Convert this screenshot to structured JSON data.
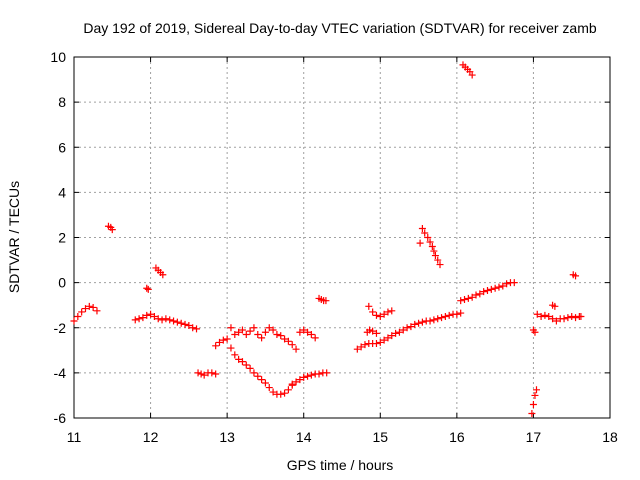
{
  "chart_data": {
    "type": "scatter",
    "title": "Day 192 of 2019, Sidereal Day-to-day VTEC variation (SDTVAR) for receiver zamb",
    "xlabel": "GPS time / hours",
    "ylabel": "SDTVAR / TECUs",
    "xlim": [
      11,
      18
    ],
    "ylim": [
      -6,
      10
    ],
    "xticks": [
      11,
      12,
      13,
      14,
      15,
      16,
      17,
      18
    ],
    "yticks": [
      -6,
      -4,
      -2,
      0,
      2,
      4,
      6,
      8,
      10
    ],
    "grid": true,
    "marker": "+",
    "color": "#ff0000",
    "segments": [
      {
        "x": [
          11.0,
          11.05,
          11.1,
          11.15,
          11.2,
          11.25,
          11.3
        ],
        "y": [
          -1.7,
          -1.5,
          -1.3,
          -1.15,
          -1.05,
          -1.1,
          -1.25
        ]
      },
      {
        "x": [
          11.45,
          11.48,
          11.5
        ],
        "y": [
          2.5,
          2.45,
          2.35
        ]
      },
      {
        "x": [
          11.8,
          11.85,
          11.9,
          11.95,
          12.0,
          12.05,
          12.1,
          12.15,
          12.2,
          12.25,
          12.3,
          12.35,
          12.4,
          12.45,
          12.5,
          12.55,
          12.6
        ],
        "y": [
          -1.65,
          -1.6,
          -1.55,
          -1.45,
          -1.4,
          -1.5,
          -1.6,
          -1.65,
          -1.6,
          -1.65,
          -1.7,
          -1.75,
          -1.8,
          -1.85,
          -1.9,
          -2.0,
          -2.05
        ]
      },
      {
        "x": [
          11.95,
          11.97
        ],
        "y": [
          -0.25,
          -0.3
        ]
      },
      {
        "x": [
          12.07,
          12.1,
          12.13,
          12.16
        ],
        "y": [
          0.65,
          0.55,
          0.45,
          0.35
        ]
      },
      {
        "x": [
          12.62,
          12.66,
          12.7,
          12.75,
          12.8,
          12.85
        ],
        "y": [
          -4.0,
          -4.05,
          -4.1,
          -4.0,
          -4.0,
          -4.05
        ]
      },
      {
        "x": [
          12.85,
          12.9,
          12.95,
          13.0,
          13.05,
          13.1,
          13.15,
          13.2,
          13.25,
          13.3,
          13.35,
          13.4,
          13.45,
          13.5,
          13.55,
          13.6,
          13.65,
          13.7,
          13.75,
          13.8,
          13.85
        ],
        "y": [
          -2.8,
          -2.65,
          -2.55,
          -2.5,
          -2.9,
          -3.2,
          -3.4,
          -3.5,
          -3.65,
          -3.8,
          -4.0,
          -4.15,
          -4.3,
          -4.45,
          -4.65,
          -4.85,
          -4.95,
          -4.95,
          -4.9,
          -4.75,
          -4.55
        ]
      },
      {
        "x": [
          13.05,
          13.1,
          13.15,
          13.2,
          13.25,
          13.3,
          13.35,
          13.4,
          13.45,
          13.5,
          13.55,
          13.6,
          13.65,
          13.7,
          13.75,
          13.8,
          13.85,
          13.9
        ],
        "y": [
          -2.0,
          -2.3,
          -2.2,
          -2.1,
          -2.3,
          -2.15,
          -2.0,
          -2.3,
          -2.45,
          -2.2,
          -2.0,
          -2.1,
          -2.3,
          -2.35,
          -2.5,
          -2.6,
          -2.75,
          -2.95
        ]
      },
      {
        "x": [
          13.85,
          13.9,
          13.95,
          14.0,
          14.05,
          14.1,
          14.15,
          14.2,
          14.25,
          14.3
        ],
        "y": [
          -4.5,
          -4.4,
          -4.3,
          -4.2,
          -4.15,
          -4.1,
          -4.05,
          -4.05,
          -4.0,
          -4.0
        ]
      },
      {
        "x": [
          13.95,
          14.0,
          14.05,
          14.1,
          14.15
        ],
        "y": [
          -2.2,
          -2.1,
          -2.2,
          -2.3,
          -2.45
        ]
      },
      {
        "x": [
          14.2,
          14.23,
          14.26,
          14.29
        ],
        "y": [
          -0.7,
          -0.75,
          -0.8,
          -0.8
        ]
      },
      {
        "x": [
          14.7,
          14.75,
          14.8,
          14.85,
          14.9,
          14.95,
          15.0,
          15.05,
          15.1,
          15.15,
          15.2,
          15.25,
          15.3,
          15.35,
          15.4,
          15.45,
          15.5,
          15.55,
          15.6,
          15.65,
          15.7,
          15.75,
          15.8,
          15.85,
          15.9,
          15.95,
          16.0,
          16.05
        ],
        "y": [
          -2.95,
          -2.85,
          -2.75,
          -2.7,
          -2.7,
          -2.7,
          -2.65,
          -2.55,
          -2.45,
          -2.35,
          -2.25,
          -2.2,
          -2.1,
          -2.0,
          -1.95,
          -1.85,
          -1.8,
          -1.75,
          -1.7,
          -1.7,
          -1.65,
          -1.6,
          -1.55,
          -1.5,
          -1.45,
          -1.4,
          -1.4,
          -1.35
        ]
      },
      {
        "x": [
          14.83,
          14.86,
          14.9,
          14.95
        ],
        "y": [
          -2.2,
          -2.1,
          -2.15,
          -2.25
        ]
      },
      {
        "x": [
          14.85,
          14.9,
          14.95,
          15.0,
          15.05,
          15.1,
          15.15
        ],
        "y": [
          -1.05,
          -1.3,
          -1.45,
          -1.5,
          -1.4,
          -1.3,
          -1.25
        ]
      },
      {
        "x": [
          15.52,
          15.55,
          15.58,
          15.62,
          15.65,
          15.68,
          15.7,
          15.72,
          15.75,
          15.78
        ],
        "y": [
          1.75,
          2.4,
          2.2,
          2.0,
          1.8,
          1.6,
          1.4,
          1.2,
          1.0,
          0.8
        ]
      },
      {
        "x": [
          16.05,
          16.1,
          16.15,
          16.2,
          16.25,
          16.3,
          16.35,
          16.4,
          16.45,
          16.5,
          16.55,
          16.6,
          16.65,
          16.7,
          16.75
        ],
        "y": [
          -0.8,
          -0.75,
          -0.7,
          -0.65,
          -0.55,
          -0.5,
          -0.4,
          -0.35,
          -0.3,
          -0.25,
          -0.2,
          -0.15,
          -0.05,
          0.0,
          0.0
        ]
      },
      {
        "x": [
          16.08,
          16.11,
          16.14,
          16.17,
          16.2
        ],
        "y": [
          9.65,
          9.55,
          9.45,
          9.35,
          9.2
        ]
      },
      {
        "x": [
          16.98,
          17.0,
          17.02,
          17.04
        ],
        "y": [
          -5.8,
          -5.4,
          -5.0,
          -4.75
        ]
      },
      {
        "x": [
          17.0,
          17.02
        ],
        "y": [
          -2.1,
          -2.2
        ]
      },
      {
        "x": [
          17.05,
          17.1,
          17.15,
          17.2,
          17.25,
          17.3,
          17.35,
          17.4,
          17.45,
          17.5,
          17.55,
          17.6,
          17.62
        ],
        "y": [
          -1.4,
          -1.5,
          -1.45,
          -1.5,
          -1.6,
          -1.7,
          -1.6,
          -1.6,
          -1.55,
          -1.5,
          -1.55,
          -1.5,
          -1.5
        ]
      },
      {
        "x": [
          17.25,
          17.28
        ],
        "y": [
          -1.0,
          -1.05
        ]
      },
      {
        "x": [
          17.52,
          17.55
        ],
        "y": [
          0.35,
          0.3
        ]
      }
    ]
  }
}
